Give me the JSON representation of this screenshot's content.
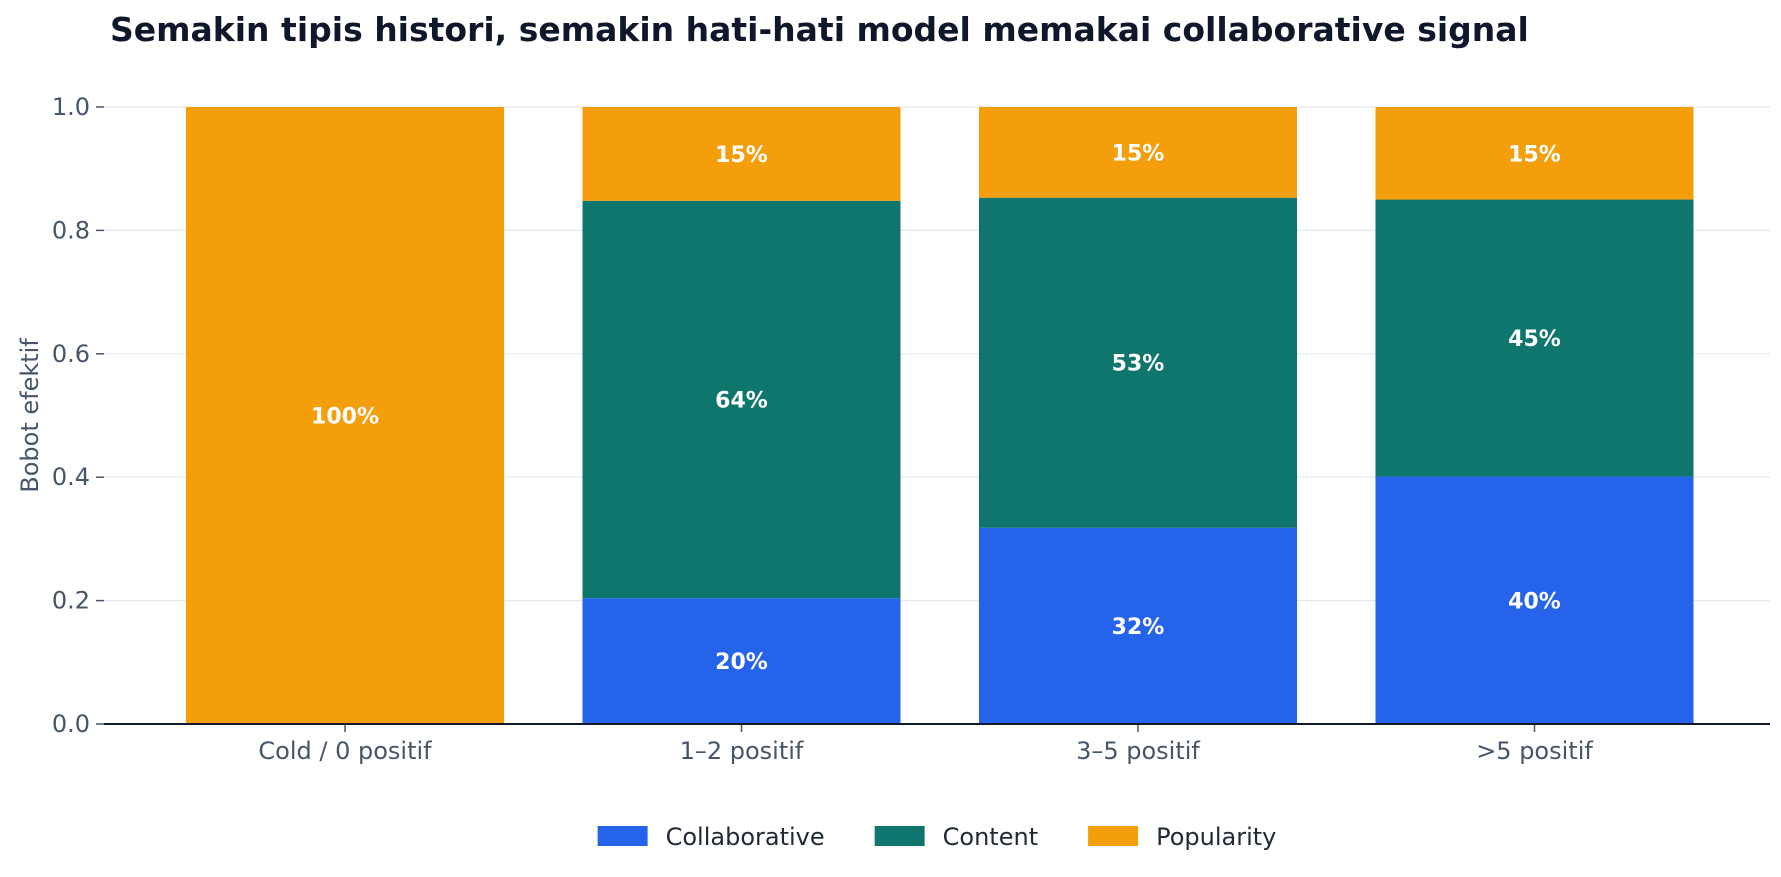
{
  "chart_data": {
    "type": "bar",
    "stacked": true,
    "title": "Semakin tipis histori, semakin hati-hati model memakai collaborative signal",
    "xlabel": "",
    "ylabel": "Bobot efektif",
    "ylim": [
      0,
      1.0
    ],
    "yticks": [
      "0.0",
      "0.2",
      "0.4",
      "0.6",
      "0.8",
      "1.0"
    ],
    "categories": [
      "Cold / 0 positif",
      "1–2 positif",
      "3–5 positif",
      ">5 positif"
    ],
    "series": [
      {
        "name": "Collaborative",
        "color": "#2563eb",
        "values": [
          0.0,
          0.204,
          0.318,
          0.401
        ],
        "labels": [
          "",
          "20%",
          "32%",
          "40%"
        ]
      },
      {
        "name": "Content",
        "color": "#0f766e",
        "values": [
          0.0,
          0.644,
          0.535,
          0.449
        ],
        "labels": [
          "",
          "64%",
          "53%",
          "45%"
        ]
      },
      {
        "name": "Popularity",
        "color": "#f59e0b",
        "values": [
          1.0,
          0.152,
          0.147,
          0.15
        ],
        "labels": [
          "100%",
          "15%",
          "15%",
          "15%"
        ]
      }
    ],
    "grid": true,
    "legend": "bottom-center"
  }
}
